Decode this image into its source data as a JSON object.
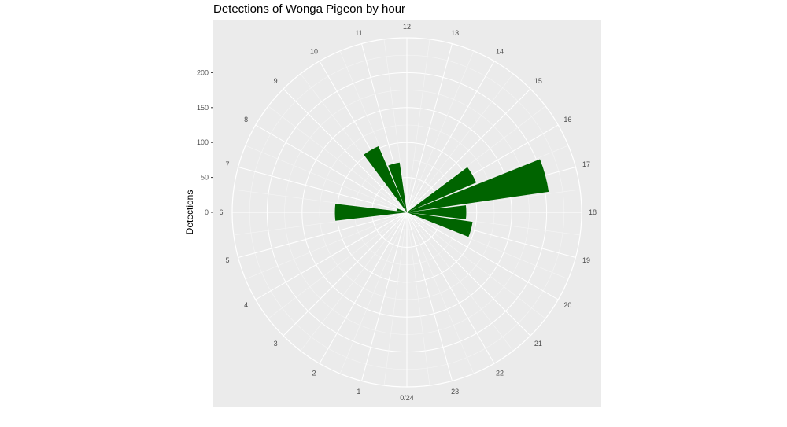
{
  "chart_data": {
    "type": "bar",
    "coord": "polar",
    "title": "Detections of Wonga Pigeon by hour",
    "ylabel": "Detections",
    "xlabel": "",
    "ylim": [
      0,
      250
    ],
    "yticks": [
      0,
      50,
      100,
      150,
      200
    ],
    "categories": [
      "0/24",
      "1",
      "2",
      "3",
      "4",
      "5",
      "6",
      "7",
      "8",
      "9",
      "10",
      "11",
      "12",
      "13",
      "14",
      "15",
      "16",
      "17",
      "18",
      "19",
      "20",
      "21",
      "22",
      "23"
    ],
    "values": [
      0,
      0,
      0,
      0,
      0,
      0,
      103,
      15,
      0,
      0,
      103,
      72,
      0,
      0,
      0,
      0,
      108,
      205,
      85,
      95,
      0,
      0,
      0,
      0
    ],
    "bar_color": "#006400",
    "grid": true
  }
}
